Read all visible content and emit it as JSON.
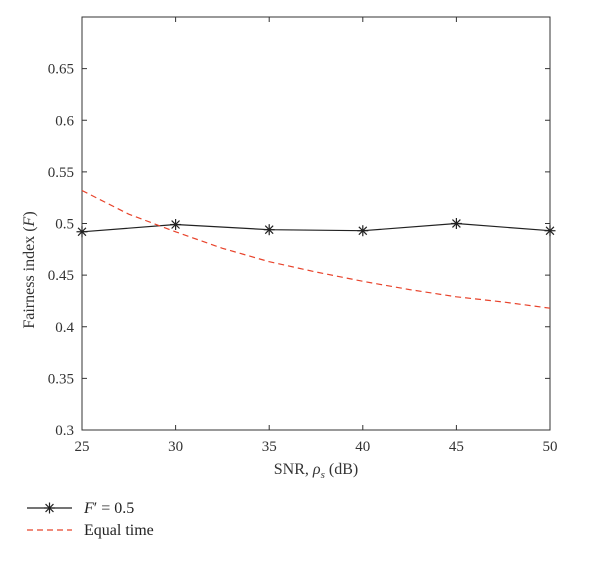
{
  "chart_data": {
    "type": "line",
    "title": "",
    "xlabel": {
      "prefix": "SNR, ",
      "symbol": "ρ",
      "subscript": "s",
      "suffix": " (dB)"
    },
    "ylabel": {
      "prefix": "Fairness index (",
      "symbol": "F",
      "suffix": ")"
    },
    "xlim": [
      25,
      50
    ],
    "ylim": [
      0.3,
      0.7
    ],
    "xticks": [
      25,
      30,
      35,
      40,
      45,
      50
    ],
    "xtick_labels": [
      "25",
      "30",
      "35",
      "40",
      "45",
      "50"
    ],
    "yticks": [
      0.3,
      0.35,
      0.4,
      0.45,
      0.5,
      0.55,
      0.6,
      0.65
    ],
    "ytick_labels": [
      "0.3",
      "0.35",
      "0.4",
      "0.45",
      "0.5",
      "0.55",
      "0.6",
      "0.65"
    ],
    "grid": false,
    "legend_position": "bottom-left, outside plot",
    "series": [
      {
        "name": "F′ = 0.5",
        "legend": {
          "symbol": "F",
          "prime": "′",
          "rest": " = 0.5"
        },
        "color": "#222222",
        "line_style": "solid",
        "marker": "asterisk",
        "x": [
          25,
          30,
          35,
          40,
          45,
          50
        ],
        "y": [
          0.492,
          0.499,
          0.494,
          0.493,
          0.5,
          0.493
        ]
      },
      {
        "name": "Equal time",
        "legend": {
          "symbol": "",
          "prime": "",
          "rest": "Equal time"
        },
        "color": "#e8432b",
        "line_style": "dashed",
        "marker": "none",
        "x": [
          25,
          27.5,
          30,
          32.5,
          35,
          37.5,
          40,
          42.5,
          45,
          47.5,
          50
        ],
        "y": [
          0.532,
          0.509,
          0.492,
          0.476,
          0.463,
          0.453,
          0.444,
          0.436,
          0.429,
          0.424,
          0.418
        ]
      }
    ]
  }
}
